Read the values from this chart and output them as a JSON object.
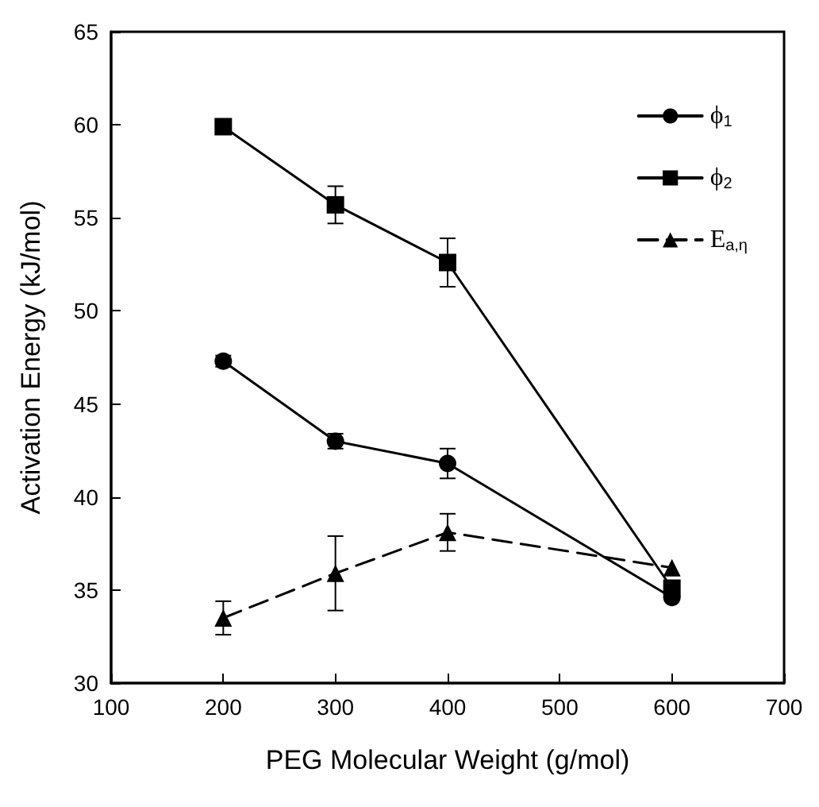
{
  "chart_data": {
    "type": "line",
    "xlabel": "PEG Molecular Weight (g/mol)",
    "ylabel": "Activation Energy (kJ/mol)",
    "xlim": [
      100,
      700
    ],
    "xticks": [
      100,
      200,
      300,
      400,
      500,
      600,
      700
    ],
    "ylim": [
      30,
      65
    ],
    "yticks": [
      30,
      35,
      40,
      45,
      50,
      55,
      60,
      65
    ],
    "grid": false,
    "legend": "top right",
    "series": [
      {
        "name": "ϕ$_{1}$",
        "color": "#000000",
        "marker": "circle",
        "line_style": "solid",
        "x": [
          200,
          300,
          400,
          600
        ],
        "values": [
          47.3,
          43.0,
          41.8,
          34.6
        ],
        "errors": [
          0.3,
          0.4,
          0.8,
          null
        ]
      },
      {
        "name": "ϕ$_{2}$",
        "color": "#000000",
        "marker": "square",
        "line_style": "solid",
        "x": [
          200,
          300,
          400,
          600
        ],
        "values": [
          59.9,
          55.7,
          52.6,
          35.1
        ],
        "errors": [
          0.3,
          1.0,
          1.3,
          null
        ]
      },
      {
        "name": "E$_{a,η}$",
        "color": "#000000",
        "marker": "triangle",
        "line_style": "dashed",
        "x": [
          200,
          300,
          400,
          600
        ],
        "values": [
          33.5,
          35.9,
          38.1,
          36.2
        ],
        "errors": [
          0.9,
          2.0,
          1.0,
          null
        ]
      }
    ]
  }
}
